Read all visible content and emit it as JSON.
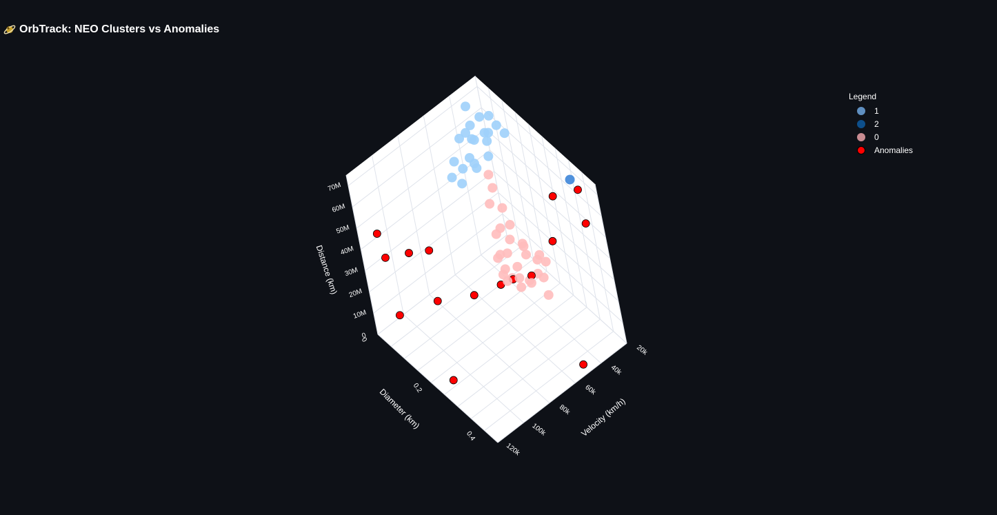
{
  "title": {
    "icon": "satellite-icon",
    "text": "OrbTrack: NEO Clusters vs Anomalies"
  },
  "legend": {
    "title": "Legend",
    "items": [
      {
        "label": "1",
        "color": "#5f8fc0"
      },
      {
        "label": "2",
        "color": "#0d4f8b"
      },
      {
        "label": "0",
        "color": "#c88c92"
      },
      {
        "label": "Anomalies",
        "color": "#ff0000"
      }
    ]
  },
  "chart_data": {
    "type": "scatter3d",
    "axes": {
      "x": {
        "title": "Diameter (km)",
        "range": [
          0,
          0.45
        ],
        "ticks": [
          "0",
          "0.2",
          "0.4"
        ],
        "tick_values": [
          0,
          0.2,
          0.4
        ]
      },
      "y": {
        "title": "Velocity (km/h)",
        "range": [
          20000,
          120000
        ],
        "ticks": [
          "20k",
          "40k",
          "60k",
          "80k",
          "100k",
          "120k"
        ],
        "tick_values": [
          20000,
          40000,
          60000,
          80000,
          100000,
          120000
        ]
      },
      "z": {
        "title": "Distance (km)",
        "range": [
          0,
          75000000
        ],
        "ticks": [
          "0",
          "10M",
          "20M",
          "30M",
          "40M",
          "50M",
          "60M",
          "70M"
        ],
        "tick_values": [
          0,
          10000000,
          20000000,
          30000000,
          40000000,
          50000000,
          60000000,
          70000000
        ]
      }
    },
    "background": "#ffffff",
    "grid": true,
    "legend_position": "top-right",
    "series": [
      {
        "name": "1",
        "color": "#9fd0fb",
        "points": [
          [
            0.03,
            35000,
            71000000
          ],
          [
            0.05,
            30000,
            66000000
          ],
          [
            0.08,
            28000,
            69000000
          ],
          [
            0.04,
            40000,
            62000000
          ],
          [
            0.06,
            38000,
            60000000
          ],
          [
            0.09,
            32000,
            64000000
          ],
          [
            0.02,
            42000,
            58000000
          ],
          [
            0.07,
            45000,
            56000000
          ],
          [
            0.1,
            36000,
            67000000
          ],
          [
            0.03,
            50000,
            52000000
          ],
          [
            0.05,
            48000,
            50000000
          ],
          [
            0.08,
            44000,
            54000000
          ],
          [
            0.12,
            30000,
            70000000
          ],
          [
            0.06,
            52000,
            46000000
          ],
          [
            0.09,
            34000,
            61000000
          ],
          [
            0.11,
            38000,
            58000000
          ],
          [
            0.04,
            55000,
            48000000
          ],
          [
            0.07,
            41000,
            63000000
          ],
          [
            0.1,
            46000,
            55000000
          ],
          [
            0.13,
            27000,
            66000000
          ],
          [
            0.02,
            33000,
            60000000
          ]
        ]
      },
      {
        "name": "2",
        "color": "#3d85d8",
        "points": [
          [
            0.38,
            26000,
            72000000
          ]
        ]
      },
      {
        "name": "0",
        "color": "#ffbdbd",
        "points": [
          [
            0.2,
            40000,
            28000000
          ],
          [
            0.22,
            42000,
            26000000
          ],
          [
            0.18,
            45000,
            30000000
          ],
          [
            0.24,
            38000,
            24000000
          ],
          [
            0.21,
            48000,
            22000000
          ],
          [
            0.19,
            50000,
            27000000
          ],
          [
            0.23,
            44000,
            32000000
          ],
          [
            0.25,
            41000,
            20000000
          ],
          [
            0.17,
            52000,
            25000000
          ],
          [
            0.2,
            55000,
            23000000
          ],
          [
            0.22,
            58000,
            21000000
          ],
          [
            0.26,
            39000,
            29000000
          ],
          [
            0.16,
            47000,
            34000000
          ],
          [
            0.18,
            43000,
            36000000
          ],
          [
            0.24,
            46000,
            18000000
          ],
          [
            0.21,
            53000,
            19000000
          ],
          [
            0.27,
            37000,
            26000000
          ],
          [
            0.15,
            49000,
            31000000
          ],
          [
            0.23,
            51000,
            16000000
          ],
          [
            0.19,
            57000,
            28000000
          ],
          [
            0.28,
            42000,
            22000000
          ],
          [
            0.14,
            40000,
            38000000
          ],
          [
            0.25,
            54000,
            24000000
          ],
          [
            0.12,
            45000,
            40000000
          ],
          [
            0.1,
            38000,
            42000000
          ],
          [
            0.08,
            36000,
            45000000
          ],
          [
            0.22,
            60000,
            25000000
          ],
          [
            0.26,
            48000,
            20000000
          ],
          [
            0.3,
            44000,
            17000000
          ]
        ]
      },
      {
        "name": "Anomalies",
        "color": "#ff0000",
        "points": [
          [
            0.4,
            25000,
            69000000
          ],
          [
            0.44,
            30000,
            60000000
          ],
          [
            0.3,
            28000,
            56000000
          ],
          [
            0.34,
            40000,
            45000000
          ],
          [
            0.02,
            110000,
            45000000
          ],
          [
            0.05,
            112000,
            38000000
          ],
          [
            0.08,
            100000,
            38000000
          ],
          [
            0.12,
            92000,
            40000000
          ],
          [
            0.45,
            52000,
            5000000
          ],
          [
            0.26,
            47000,
            23000000
          ],
          [
            0.22,
            54000,
            20000000
          ],
          [
            0.2,
            60000,
            18000000
          ],
          [
            0.15,
            72000,
            13000000
          ],
          [
            0.1,
            90000,
            13000000
          ],
          [
            0.05,
            110000,
            10000000
          ],
          [
            0.25,
            112000,
            3000000
          ]
        ]
      }
    ]
  }
}
